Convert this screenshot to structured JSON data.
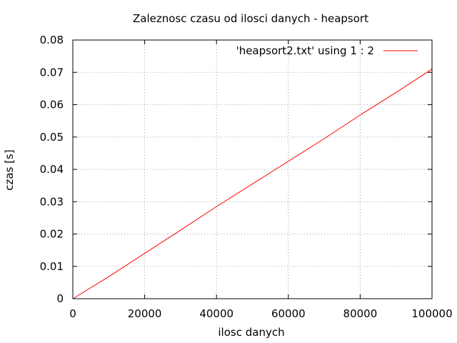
{
  "chart_data": {
    "type": "line",
    "title": "Zaleznosc czasu od ilosci danych - heapsort",
    "xlabel": "ilosc danych",
    "ylabel": "czas [s]",
    "xlim": [
      0,
      100000
    ],
    "ylim": [
      0,
      0.08
    ],
    "xticks": [
      0,
      20000,
      40000,
      60000,
      80000,
      100000
    ],
    "xtick_labels": [
      "0",
      "20000",
      "40000",
      "60000",
      "80000",
      "100000"
    ],
    "yticks": [
      0,
      0.01,
      0.02,
      0.03,
      0.04,
      0.05,
      0.06,
      0.07,
      0.08
    ],
    "ytick_labels": [
      "0",
      "0.01",
      "0.02",
      "0.03",
      "0.04",
      "0.05",
      "0.06",
      "0.07",
      "0.08"
    ],
    "grid": true,
    "legend_position": "top-right",
    "series": [
      {
        "name": "'heapsort2.txt' using 1 : 2",
        "color": "#ff0000",
        "x": [
          0,
          10000,
          20000,
          30000,
          40000,
          50000,
          60000,
          70000,
          80000,
          90000,
          100000
        ],
        "y": [
          0,
          0.0068,
          0.014,
          0.0212,
          0.0285,
          0.0355,
          0.0425,
          0.0495,
          0.0568,
          0.0638,
          0.071
        ]
      }
    ]
  }
}
